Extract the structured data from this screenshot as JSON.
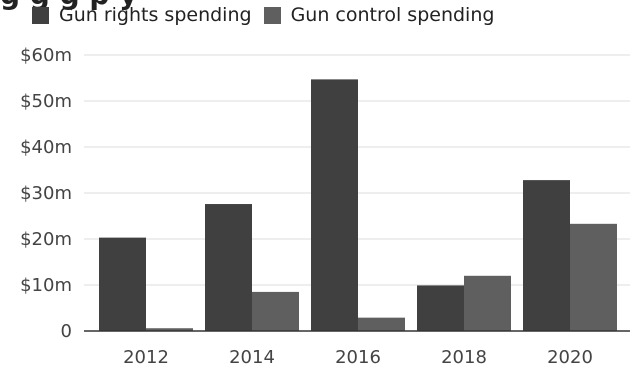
{
  "chart_data": {
    "type": "bar",
    "title_fragment": "g    g  g p          y",
    "categories": [
      "2012",
      "2014",
      "2016",
      "2018",
      "2020"
    ],
    "series": [
      {
        "name": "Gun rights spending",
        "color": "#404040",
        "values": [
          20.3,
          27.6,
          54.7,
          9.9,
          32.8
        ]
      },
      {
        "name": "Gun control spending",
        "color": "#5f5f5f",
        "values": [
          0.6,
          8.5,
          2.9,
          12.0,
          23.3
        ]
      }
    ],
    "ylim": [
      0,
      60
    ],
    "yticks": [
      0,
      10,
      20,
      30,
      40,
      50,
      60
    ],
    "ytick_labels": [
      "0",
      "$10m",
      "$20m",
      "$30m",
      "$40m",
      "$50m",
      "$60m"
    ],
    "grid": true,
    "legend_position": "top-left"
  }
}
